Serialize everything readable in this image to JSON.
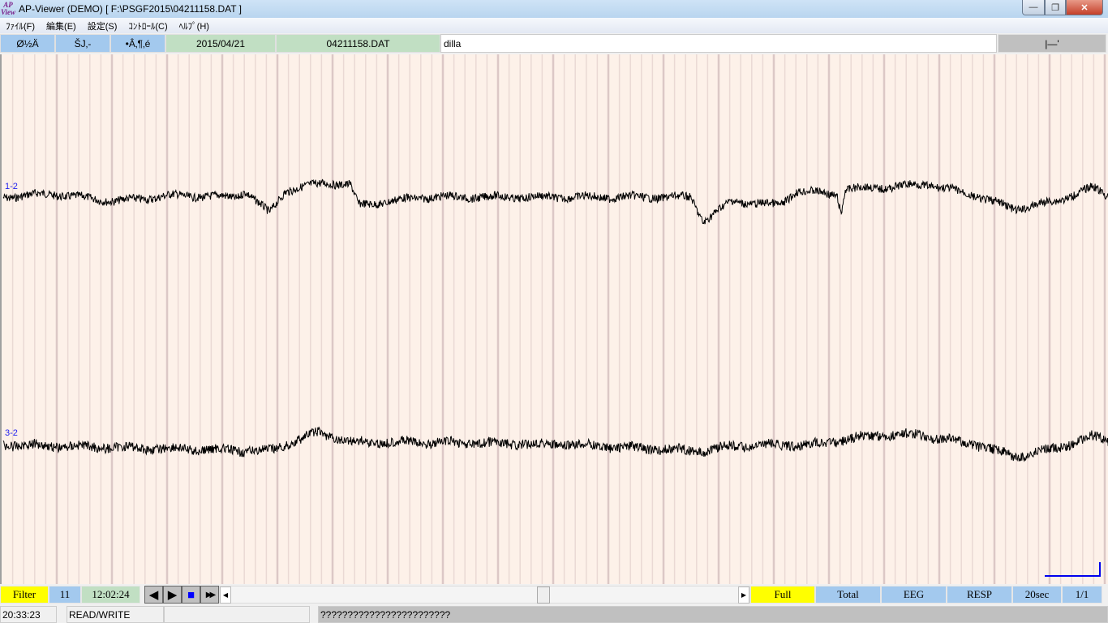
{
  "window": {
    "title": "AP-Viewer (DEMO) [ F:\\PSGF2015\\04211158.DAT ]",
    "logo": "AP View",
    "minimize": "—",
    "maximize": "❐",
    "close": "✕"
  },
  "menu": [
    "ﾌｧｲﾙ(F)",
    "編集(E)",
    "設定(S)",
    "ｺﾝﾄﾛｰﾙ(C)",
    "ﾍﾙﾌﾟ(H)"
  ],
  "toolbar": {
    "btn1": "Ø½Ä",
    "btn2": "ŠJ‚-",
    "btn3": "•Â‚¶‚é",
    "date": "2015/04/21",
    "file": "04211158.DAT",
    "comment": "dilla",
    "right": "|—'"
  },
  "channels": [
    {
      "label": "1-2"
    },
    {
      "label": "3-2"
    }
  ],
  "controls": {
    "filter": "Filter",
    "number": "11",
    "time": "12:02:24",
    "prev": "◀",
    "play": "▶",
    "stop": "■",
    "fast": "▶▶",
    "full": "Full",
    "total": "Total",
    "eeg": "EEG",
    "resp": "RESP",
    "span": "20sec",
    "page": "1/1"
  },
  "status": {
    "clock": "20:33:23",
    "mode": "READ/WRITE",
    "blank": "",
    "message": "????????????????????????"
  },
  "colors": {
    "plot_bg": "#fdf1e9",
    "trace": "#000000",
    "label": "#2222ee",
    "accent_yellow": "#ffff00",
    "button_blue": "#a3c9ee",
    "button_green": "#c1dfc3"
  },
  "scrollbar": {
    "position_percent": 60
  }
}
